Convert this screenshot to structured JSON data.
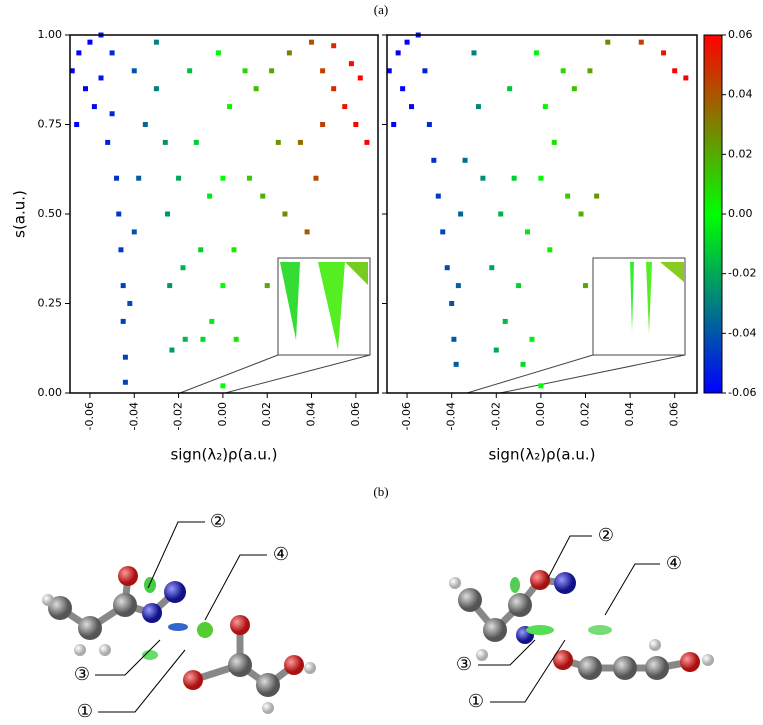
{
  "captions": [
    "(a)",
    "(b)"
  ],
  "colorbar": {
    "lim": [
      -0.06,
      0.06
    ],
    "colormap": [
      "#0000ff",
      "#00ff00",
      "#ff0000"
    ],
    "ticks": [
      0.06,
      0.04,
      0.02,
      {
        "value": 0,
        "label": "0.00"
      },
      -0.02,
      -0.04,
      -0.06
    ]
  },
  "chart_data": [
    {
      "type": "scatter",
      "ylabel": "s(a.u.)",
      "xlabel": "sign(λ₂)ρ(a.u.)",
      "xlim": [
        -0.069,
        0.07
      ],
      "ylim": [
        0,
        1
      ],
      "xticks": [
        -0.06,
        -0.04,
        -0.02,
        {
          "value": 0,
          "label": "0.00"
        },
        0.02,
        0.04,
        0.06
      ],
      "yticks": [
        {
          "value": 0,
          "label": "0.00"
        },
        0.25,
        {
          "value": 0.5,
          "label": "0.50"
        },
        0.75,
        {
          "value": 1,
          "label": "1.00"
        }
      ],
      "x": [
        -0.068,
        -0.065,
        -0.06,
        -0.055,
        -0.062,
        -0.058,
        -0.066,
        -0.055,
        -0.05,
        -0.05,
        -0.052,
        -0.048,
        -0.047,
        -0.046,
        -0.045,
        -0.045,
        -0.044,
        -0.044,
        -0.042,
        -0.04,
        -0.038,
        -0.035,
        -0.04,
        -0.03,
        -0.03,
        -0.026,
        -0.025,
        -0.024,
        -0.023,
        -0.02,
        -0.018,
        -0.017,
        -0.015,
        -0.012,
        -0.01,
        -0.009,
        -0.006,
        -0.005,
        -0.002,
        0.0,
        0.0,
        0.0,
        0.003,
        0.005,
        0.006,
        0.01,
        0.012,
        0.015,
        0.018,
        0.02,
        0.022,
        0.025,
        0.028,
        0.03,
        0.04,
        0.045,
        0.05,
        0.055,
        0.06,
        0.065,
        0.05,
        0.058,
        0.062,
        0.045,
        0.042,
        0.038,
        0.035
      ],
      "y": [
        0.9,
        0.95,
        0.98,
        1.0,
        0.85,
        0.8,
        0.75,
        0.88,
        0.95,
        0.78,
        0.7,
        0.6,
        0.5,
        0.4,
        0.3,
        0.2,
        0.1,
        0.03,
        0.25,
        0.45,
        0.6,
        0.75,
        0.9,
        0.98,
        0.85,
        0.7,
        0.5,
        0.3,
        0.12,
        0.6,
        0.35,
        0.15,
        0.9,
        0.7,
        0.4,
        0.15,
        0.55,
        0.2,
        0.95,
        0.6,
        0.3,
        0.02,
        0.8,
        0.4,
        0.15,
        0.9,
        0.6,
        0.85,
        0.55,
        0.3,
        0.9,
        0.7,
        0.5,
        0.95,
        0.98,
        0.9,
        0.85,
        0.8,
        0.75,
        0.7,
        0.97,
        0.92,
        0.88,
        0.75,
        0.6,
        0.45,
        0.7
      ]
    },
    {
      "type": "scatter",
      "xlabel": "sign(λ₂)ρ(a.u.)",
      "xlim": [
        -0.069,
        0.07
      ],
      "ylim": [
        0,
        1
      ],
      "xticks": [
        -0.06,
        -0.04,
        -0.02,
        {
          "value": 0,
          "label": "0.00"
        },
        0.02,
        0.04,
        0.06
      ],
      "yticks": [
        0,
        0.25,
        0.5,
        0.75,
        1
      ],
      "x": [
        -0.068,
        -0.064,
        -0.06,
        -0.055,
        -0.062,
        -0.058,
        -0.066,
        -0.052,
        -0.05,
        -0.048,
        -0.046,
        -0.044,
        -0.042,
        -0.04,
        -0.039,
        -0.038,
        -0.037,
        -0.036,
        -0.034,
        -0.03,
        -0.028,
        -0.026,
        -0.022,
        -0.02,
        -0.018,
        -0.016,
        -0.014,
        -0.012,
        -0.01,
        -0.008,
        -0.006,
        -0.004,
        -0.002,
        0.0,
        0.0,
        0.002,
        0.004,
        0.006,
        0.01,
        0.012,
        0.015,
        0.018,
        0.02,
        0.022,
        0.025,
        0.03,
        0.045,
        0.055,
        0.06,
        0.065
      ],
      "y": [
        0.9,
        0.95,
        0.98,
        1.0,
        0.85,
        0.8,
        0.75,
        0.9,
        0.75,
        0.65,
        0.55,
        0.45,
        0.35,
        0.25,
        0.15,
        0.08,
        0.3,
        0.5,
        0.65,
        0.95,
        0.8,
        0.6,
        0.35,
        0.12,
        0.5,
        0.2,
        0.85,
        0.6,
        0.3,
        0.08,
        0.45,
        0.15,
        0.95,
        0.6,
        0.02,
        0.8,
        0.4,
        0.7,
        0.9,
        0.55,
        0.85,
        0.5,
        0.3,
        0.9,
        0.55,
        0.98,
        0.98,
        0.95,
        0.9,
        0.88
      ]
    }
  ],
  "molecules": [
    {
      "labels": [
        "②",
        "④",
        "③",
        "①"
      ]
    },
    {
      "labels": [
        "②",
        "④",
        "③",
        "①"
      ]
    }
  ]
}
